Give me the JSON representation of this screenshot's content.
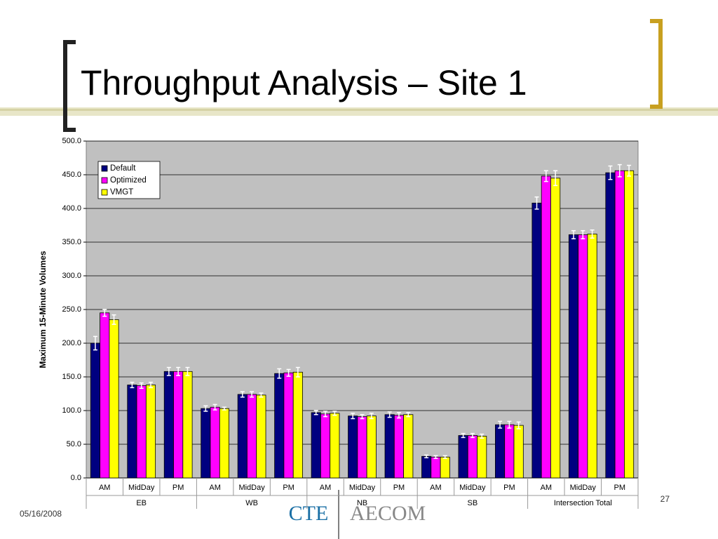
{
  "slide": {
    "title": "Throughput Analysis – Site 1",
    "date": "05/16/2008",
    "page": "27",
    "logo_left": "CTE",
    "logo_right": "AECOM"
  },
  "chart_data": {
    "type": "bar",
    "y_label": "Maximum 15-Minute Volumes",
    "categories": [
      "AM",
      "MidDay",
      "PM",
      "AM",
      "MidDay",
      "PM",
      "AM",
      "MidDay",
      "PM",
      "AM",
      "MidDay",
      "PM",
      "AM",
      "MidDay",
      "PM"
    ],
    "groups": [
      "EB",
      "WB",
      "NB",
      "SB",
      "Intersection Total"
    ],
    "series": [
      {
        "name": "Default",
        "color": "#000080",
        "values": [
          200,
          138,
          158,
          103,
          124,
          155,
          97,
          92,
          94,
          32,
          63,
          79,
          408,
          361,
          453
        ],
        "errors": [
          10,
          4,
          6,
          4,
          4,
          7,
          3,
          4,
          4,
          2,
          3,
          5,
          9,
          6,
          10
        ]
      },
      {
        "name": "Optimized",
        "color": "#ff00ff",
        "values": [
          245,
          137,
          158,
          105,
          124,
          156,
          95,
          91,
          93,
          31,
          63,
          79,
          448,
          361,
          456
        ],
        "errors": [
          5,
          4,
          6,
          4,
          4,
          5,
          4,
          3,
          4,
          2,
          3,
          5,
          8,
          6,
          9
        ]
      },
      {
        "name": "VMGT",
        "color": "#ffff00",
        "values": [
          235,
          138,
          158,
          103,
          123,
          157,
          96,
          92,
          94,
          31,
          62,
          78,
          445,
          362,
          456
        ],
        "errors": [
          7,
          4,
          6,
          2,
          3,
          7,
          3,
          4,
          3,
          2,
          3,
          5,
          11,
          6,
          8
        ]
      }
    ],
    "ylim": [
      0,
      500
    ],
    "yticks": [
      {
        "value": 0,
        "label": "0.0"
      },
      {
        "value": 50,
        "label": "50.0"
      },
      {
        "value": 100,
        "label": "100.0"
      },
      {
        "value": 150,
        "label": "150.0"
      },
      {
        "value": 200,
        "label": "200.0"
      },
      {
        "value": 250,
        "label": "250.0"
      },
      {
        "value": 300,
        "label": "300.0"
      },
      {
        "value": 350,
        "label": "350.0"
      },
      {
        "value": 400,
        "label": "400.0"
      },
      {
        "value": 450,
        "label": "450.0"
      },
      {
        "value": 500,
        "label": "500.0"
      }
    ],
    "grid": true,
    "legend": "top-left",
    "background": "#c0c0c0"
  }
}
